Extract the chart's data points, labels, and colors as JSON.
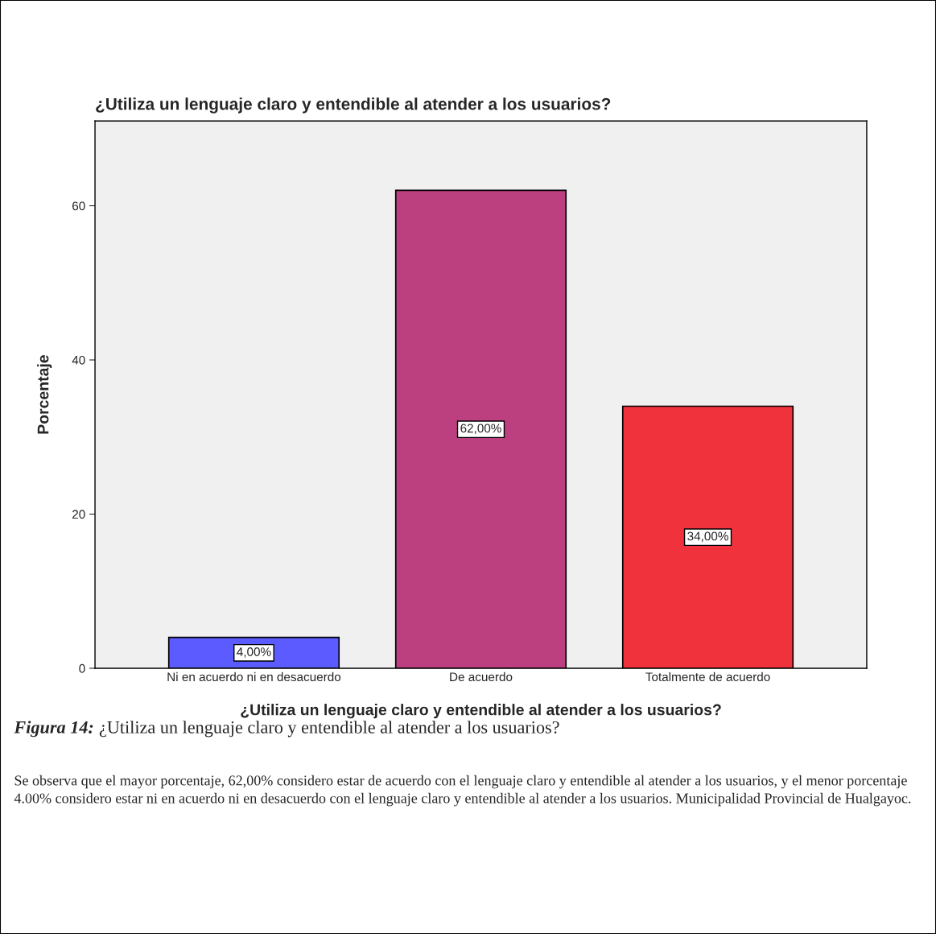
{
  "chart_data": {
    "type": "bar",
    "title": "¿Utiliza un lenguaje claro y entendible al atender a los usuarios?",
    "xlabel": "¿Utiliza un lenguaje claro y entendible al atender a los usuarios?",
    "ylabel": "Porcentaje",
    "categories": [
      "Ni en acuerdo ni en desacuerdo",
      "De acuerdo",
      "Totalmente de acuerdo"
    ],
    "values": [
      4,
      62,
      34
    ],
    "colors": [
      "#5b5bff",
      "#bc3f7f",
      "#f0323c"
    ],
    "value_labels": [
      "4,00%",
      "62,00%",
      "34,00%"
    ],
    "ylim": [
      0,
      71
    ],
    "yticks": [
      0,
      20,
      40,
      60
    ],
    "grid": false,
    "legend": false,
    "annotations": [
      "Figura 14:",
      "¿Utiliza un lenguaje claro y entendible al atender a los usuarios?",
      "Se observa que el mayor porcentaje, 62,00% considero estar de acuerdo con el lenguaje claro y entendible al atender a los usuarios, y el menor porcentaje 4.00% considero estar ni en acuerdo ni en desacuerdo con el lenguaje claro y entendible al atender a los usuarios. Municipalidad Provincial de Hualgayoc."
    ]
  }
}
